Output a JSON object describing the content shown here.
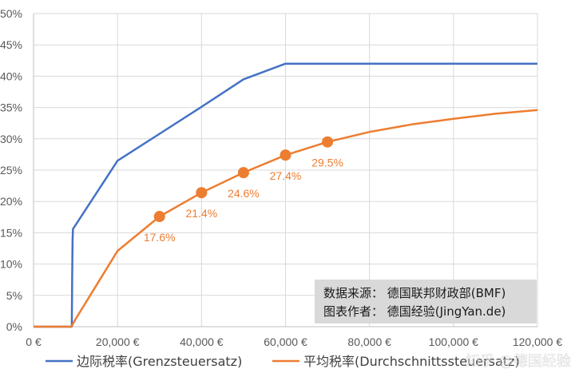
{
  "chart_data": {
    "type": "line",
    "x": [
      0,
      10000,
      20000,
      30000,
      40000,
      50000,
      60000,
      70000,
      80000,
      90000,
      100000,
      110000,
      120000
    ],
    "xlim": [
      0,
      120000
    ],
    "ylim": [
      0,
      50
    ],
    "x_ticks": [
      0,
      20000,
      40000,
      60000,
      80000,
      100000,
      120000
    ],
    "x_tick_labels": [
      "0 €",
      "20,000 €",
      "40,000 €",
      "60,000 €",
      "80,000 €",
      "100,000 €",
      "120,000 €"
    ],
    "y_ticks": [
      0,
      5,
      10,
      15,
      20,
      25,
      30,
      35,
      40,
      45,
      50
    ],
    "y_tick_labels": [
      "0%",
      "5%",
      "10%",
      "15%",
      "20%",
      "25%",
      "30%",
      "35%",
      "40%",
      "45%",
      "50%"
    ],
    "grid": true,
    "legend_position": "bottom",
    "series": [
      {
        "name": "边际税率(Grenzsteuersatz)",
        "color": "#4472c4",
        "points": [
          [
            0,
            0
          ],
          [
            9000,
            0
          ],
          [
            9000.5,
            0
          ],
          [
            9100,
            0
          ],
          [
            9200,
            8
          ],
          [
            9300,
            14
          ],
          [
            9400,
            15.6
          ],
          [
            9400.5,
            15.6
          ],
          [
            20000,
            26.5
          ],
          [
            30000,
            30.8
          ],
          [
            40000,
            35.1
          ],
          [
            50000,
            39.5
          ],
          [
            60000,
            42
          ],
          [
            120000,
            42
          ]
        ]
      },
      {
        "name": "平均税率(Durchschnittssteuersatz)",
        "color": "#ed7d31",
        "points": [
          [
            0,
            0
          ],
          [
            9000,
            0
          ],
          [
            10000,
            1.2
          ],
          [
            20000,
            12.1
          ],
          [
            30000,
            17.6
          ],
          [
            40000,
            21.4
          ],
          [
            50000,
            24.6
          ],
          [
            60000,
            27.4
          ],
          [
            70000,
            29.5
          ],
          [
            80000,
            31.1
          ],
          [
            90000,
            32.3
          ],
          [
            100000,
            33.2
          ],
          [
            110000,
            34.0
          ],
          [
            120000,
            34.6
          ]
        ],
        "markers": [
          [
            30000,
            17.6
          ],
          [
            40000,
            21.4
          ],
          [
            50000,
            24.6
          ],
          [
            60000,
            27.4
          ],
          [
            70000,
            29.5
          ]
        ],
        "data_labels": [
          "17.6%",
          "21.4%",
          "24.6%",
          "27.4%",
          "29.5%"
        ]
      }
    ],
    "source_box": {
      "line1": "数据来源：  德国联邦财政部(BMF)",
      "line2": "图表作者：  德国经验(JingYan.de)"
    }
  },
  "watermark": "知乎 @德国经验"
}
